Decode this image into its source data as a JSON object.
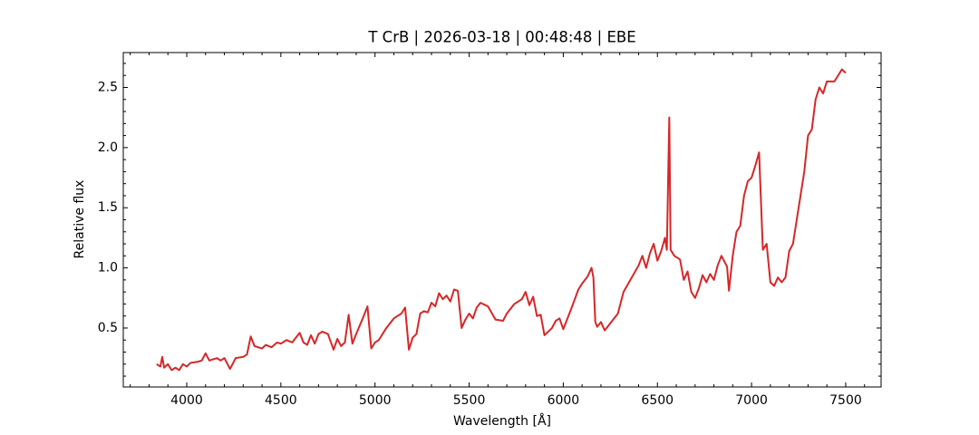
{
  "chart_data": {
    "type": "line",
    "title": "T CrB | 2026-03-18 | 00:48:48 | EBE",
    "x_label": "Wavelength [Å]",
    "y_label": "Relative flux",
    "xlim": [
      3663,
      7688
    ],
    "ylim": [
      0.01,
      2.79
    ],
    "xticks": [
      4000,
      4500,
      5000,
      5500,
      6000,
      6500,
      7000,
      7500
    ],
    "yticks": [
      0.5,
      1.0,
      1.5,
      2.0,
      2.5
    ],
    "xminorticks": [
      3700,
      3800,
      3900,
      4100,
      4200,
      4300,
      4400,
      4600,
      4700,
      4800,
      4900,
      5100,
      5200,
      5300,
      5400,
      5600,
      5700,
      5800,
      5900,
      6100,
      6200,
      6300,
      6400,
      6600,
      6700,
      6800,
      6900,
      7100,
      7200,
      7300,
      7400,
      7600
    ],
    "yminorticks": [
      0.1,
      0.2,
      0.3,
      0.4,
      0.6,
      0.7,
      0.8,
      0.9,
      1.1,
      1.2,
      1.3,
      1.4,
      1.6,
      1.7,
      1.8,
      1.9,
      2.1,
      2.2,
      2.3,
      2.4,
      2.6,
      2.7
    ],
    "x": [
      3840,
      3860,
      3870,
      3880,
      3900,
      3920,
      3940,
      3960,
      3980,
      4000,
      4020,
      4060,
      4080,
      4100,
      4120,
      4160,
      4180,
      4200,
      4230,
      4260,
      4300,
      4320,
      4340,
      4360,
      4400,
      4420,
      4450,
      4480,
      4500,
      4530,
      4560,
      4600,
      4620,
      4640,
      4660,
      4680,
      4700,
      4720,
      4750,
      4780,
      4800,
      4820,
      4840,
      4860,
      4880,
      4900,
      4940,
      4960,
      4980,
      5000,
      5020,
      5060,
      5100,
      5140,
      5160,
      5180,
      5200,
      5220,
      5240,
      5260,
      5280,
      5300,
      5320,
      5340,
      5360,
      5380,
      5400,
      5420,
      5440,
      5460,
      5480,
      5500,
      5520,
      5540,
      5560,
      5600,
      5640,
      5680,
      5700,
      5740,
      5780,
      5800,
      5820,
      5840,
      5860,
      5880,
      5900,
      5940,
      5960,
      5980,
      6000,
      6040,
      6080,
      6100,
      6130,
      6150,
      6160,
      6170,
      6180,
      6200,
      6220,
      6260,
      6290,
      6320,
      6360,
      6400,
      6420,
      6440,
      6460,
      6480,
      6500,
      6520,
      6540,
      6550,
      6563,
      6570,
      6590,
      6620,
      6640,
      6660,
      6680,
      6700,
      6720,
      6740,
      6760,
      6780,
      6800,
      6820,
      6840,
      6870,
      6880,
      6900,
      6920,
      6940,
      6960,
      6980,
      7000,
      7020,
      7040,
      7060,
      7080,
      7100,
      7120,
      7140,
      7160,
      7180,
      7200,
      7220,
      7240,
      7260,
      7280,
      7300,
      7320,
      7340,
      7360,
      7380,
      7400,
      7440,
      7460,
      7480,
      7500
    ],
    "series": [
      {
        "color": "#d62728",
        "values": [
          0.2,
          0.18,
          0.26,
          0.17,
          0.2,
          0.15,
          0.17,
          0.15,
          0.2,
          0.18,
          0.21,
          0.22,
          0.23,
          0.29,
          0.23,
          0.25,
          0.23,
          0.25,
          0.16,
          0.25,
          0.26,
          0.28,
          0.43,
          0.35,
          0.33,
          0.36,
          0.34,
          0.38,
          0.37,
          0.4,
          0.38,
          0.46,
          0.38,
          0.36,
          0.44,
          0.37,
          0.45,
          0.47,
          0.45,
          0.32,
          0.41,
          0.35,
          0.38,
          0.61,
          0.37,
          0.45,
          0.6,
          0.68,
          0.33,
          0.38,
          0.4,
          0.5,
          0.58,
          0.62,
          0.67,
          0.32,
          0.42,
          0.45,
          0.62,
          0.64,
          0.63,
          0.71,
          0.68,
          0.79,
          0.74,
          0.77,
          0.72,
          0.82,
          0.81,
          0.5,
          0.57,
          0.62,
          0.58,
          0.67,
          0.71,
          0.68,
          0.57,
          0.56,
          0.62,
          0.7,
          0.74,
          0.8,
          0.69,
          0.76,
          0.6,
          0.61,
          0.44,
          0.5,
          0.56,
          0.58,
          0.49,
          0.65,
          0.82,
          0.87,
          0.93,
          1.0,
          0.92,
          0.55,
          0.51,
          0.55,
          0.48,
          0.56,
          0.62,
          0.8,
          0.91,
          1.02,
          1.1,
          1.0,
          1.12,
          1.2,
          1.06,
          1.14,
          1.25,
          1.15,
          2.25,
          1.15,
          1.1,
          1.07,
          0.9,
          0.97,
          0.8,
          0.75,
          0.83,
          0.94,
          0.88,
          0.95,
          0.9,
          1.02,
          1.1,
          1.01,
          0.81,
          1.1,
          1.3,
          1.35,
          1.6,
          1.72,
          1.75,
          1.85,
          1.96,
          1.15,
          1.2,
          0.88,
          0.85,
          0.92,
          0.88,
          0.92,
          1.14,
          1.2,
          1.4,
          1.6,
          1.8,
          2.1,
          2.15,
          2.4,
          2.5,
          2.45,
          2.55,
          2.55,
          2.6,
          2.65,
          2.62
        ]
      }
    ]
  }
}
